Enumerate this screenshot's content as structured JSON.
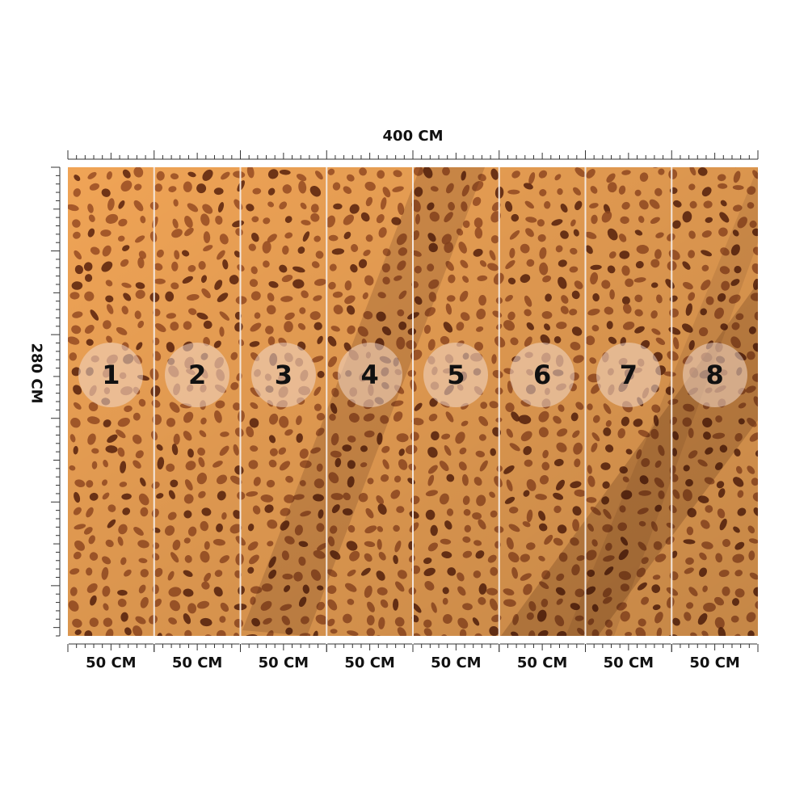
{
  "dimensions": {
    "width_label": "400 CM",
    "height_label": "280 CM"
  },
  "panels": [
    {
      "number": "1",
      "width_label": "50 CM"
    },
    {
      "number": "2",
      "width_label": "50 CM"
    },
    {
      "number": "3",
      "width_label": "50 CM"
    },
    {
      "number": "4",
      "width_label": "50 CM"
    },
    {
      "number": "5",
      "width_label": "50 CM"
    },
    {
      "number": "6",
      "width_label": "50 CM"
    },
    {
      "number": "7",
      "width_label": "50 CM"
    },
    {
      "number": "8",
      "width_label": "50 CM"
    }
  ],
  "colors": {
    "base": "#f0a456",
    "spot": "#9a4e22",
    "spot_dark": "#5a220c",
    "divider": "#f4e6dc",
    "ruler": "#333333"
  },
  "pattern": "leopard-print"
}
